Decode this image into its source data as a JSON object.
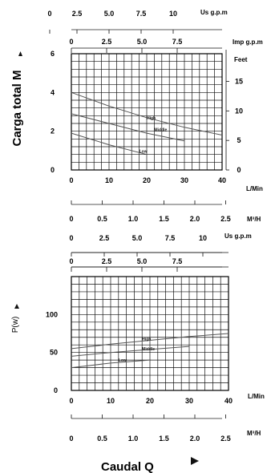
{
  "labels": {
    "carga_total": "Carga total M",
    "p_w": "P(w)",
    "caudal": "Caudal Q"
  },
  "units": {
    "us_gpm": "Us g.p.m",
    "imp_gpm": "Imp g.p.m",
    "feet": "Feet",
    "l_min": "L/Min",
    "m3_h": "M³/H"
  },
  "chart_data": [
    {
      "type": "line",
      "id": "head",
      "xlabel": "L/Min",
      "ylabel": "Carga total M",
      "xlim": [
        0,
        40
      ],
      "ylim": [
        0,
        6
      ],
      "x_ticks": [
        0,
        10,
        20,
        30,
        40
      ],
      "y_ticks": [
        0,
        2,
        4,
        6
      ],
      "right_axis": {
        "label": "Feet",
        "ticks": [
          0,
          5,
          10,
          15
        ]
      },
      "top_axes": [
        {
          "label": "Us g.p.m",
          "ticks": [
            "0",
            "2.5",
            "5.0",
            "7.5",
            "10"
          ]
        },
        {
          "label": "Imp g.p.m",
          "ticks": [
            "0",
            "2.5",
            "5.0",
            "7.5"
          ]
        }
      ],
      "bottom_axis": {
        "label": "M³/H",
        "ticks": [
          "0",
          "0.5",
          "1.0",
          "1.5",
          "2.0",
          "2.5"
        ]
      },
      "grid": true,
      "series": [
        {
          "name": "High",
          "x": [
            0,
            10,
            20,
            30,
            40
          ],
          "y": [
            4.0,
            3.3,
            2.7,
            2.2,
            1.8
          ]
        },
        {
          "name": "Middle",
          "x": [
            0,
            10,
            20,
            30
          ],
          "y": [
            2.9,
            2.4,
            1.9,
            1.5
          ]
        },
        {
          "name": "Low",
          "x": [
            0,
            10,
            20
          ],
          "y": [
            1.9,
            1.3,
            0.8
          ]
        }
      ]
    },
    {
      "type": "line",
      "id": "power",
      "xlabel": "L/Min",
      "ylabel": "P(w)",
      "xlim": [
        0,
        40
      ],
      "ylim": [
        0,
        150
      ],
      "x_ticks": [
        0,
        10,
        20,
        30,
        40
      ],
      "y_ticks": [
        0,
        50,
        100
      ],
      "top_axes": [
        {
          "label": "Us g.p.m",
          "ticks": [
            "0",
            "2.5",
            "5.0",
            "7.5",
            "10"
          ]
        },
        {
          "label": "",
          "ticks": [
            "0",
            "2.5",
            "5.0",
            "7.5"
          ]
        }
      ],
      "bottom_axis": {
        "label": "M³/H",
        "ticks": [
          "0",
          "0.5",
          "1.0",
          "1.5",
          "2.0",
          "2.5"
        ]
      },
      "grid": true,
      "series": [
        {
          "name": "High",
          "x": [
            0,
            10,
            20,
            30,
            40
          ],
          "y": [
            55,
            61,
            66,
            71,
            75
          ]
        },
        {
          "name": "Middle",
          "x": [
            0,
            10,
            20,
            30
          ],
          "y": [
            45,
            50,
            54,
            58
          ]
        },
        {
          "name": "Low",
          "x": [
            0,
            10,
            20
          ],
          "y": [
            30,
            36,
            40
          ]
        }
      ]
    }
  ]
}
